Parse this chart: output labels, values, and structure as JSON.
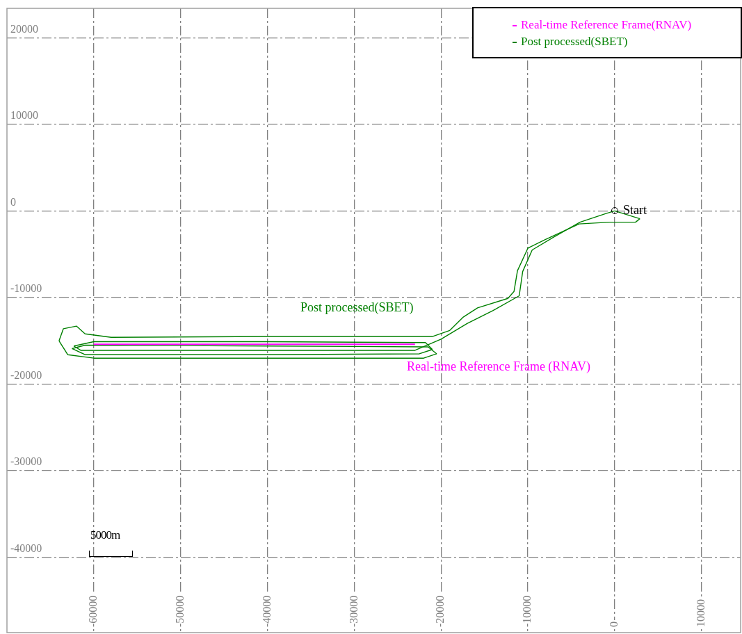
{
  "chart_data": {
    "type": "line",
    "xlim": [
      -70000,
      14500
    ],
    "ylim": [
      -48700,
      23400
    ],
    "xticks": [
      -60000,
      -50000,
      -40000,
      -30000,
      -20000,
      -10000,
      0,
      10000
    ],
    "yticks": [
      -40000,
      -30000,
      -20000,
      -10000,
      0,
      10000,
      20000
    ],
    "grid": true,
    "legend": "top right",
    "line_style": "solid",
    "series": [
      {
        "name": "Real-time Reference Frame(RNAV)",
        "color": "#ff00ff",
        "x": [
          -60000,
          -50000,
          -40000,
          -30000,
          -23000
        ],
        "values": [
          -15400,
          -15400,
          -15400,
          -15400,
          -15400
        ]
      },
      {
        "name": "Post processed(SBET)",
        "color": "#008000",
        "x": [
          0,
          2900
        ],
        "values": [
          0,
          -900
        ]
      },
      {
        "color": "#008000",
        "x": [
          2900,
          2400,
          -600,
          -4100,
          -8000,
          -10000,
          -11200,
          -11600,
          -12300,
          -15800,
          -17500,
          -19000,
          -21000,
          -40000,
          -58000,
          -61000,
          -62000,
          -63500,
          -64000
        ],
        "values": [
          -900,
          -1300,
          -1300,
          -1500,
          -3300,
          -4300,
          -6900,
          -9300,
          -10100,
          -11200,
          -12300,
          -13800,
          -14500,
          -14500,
          -14600,
          -14200,
          -13300,
          -13600,
          -15000
        ]
      },
      {
        "color": "#008000",
        "x": [
          -64000,
          -63000,
          -60000,
          -40000,
          -22000,
          -20500
        ],
        "values": [
          -15000,
          -16600,
          -17000,
          -17000,
          -17000,
          -16500
        ]
      },
      {
        "color": "#008000",
        "x": [
          -20500,
          -21500,
          -40000,
          -61000,
          -62500
        ],
        "values": [
          -16500,
          -15700,
          -15600,
          -15500,
          -15900
        ]
      },
      {
        "color": "#008000",
        "x": [
          -62500,
          -61000,
          -40000,
          -22500,
          -21000
        ],
        "values": [
          -15900,
          -16600,
          -16600,
          -16500,
          -16000
        ]
      },
      {
        "color": "#008000",
        "x": [
          -21000,
          -21800,
          -40000,
          -60000,
          -62300
        ],
        "values": [
          -16000,
          -15200,
          -15100,
          -15100,
          -15600
        ]
      },
      {
        "color": "#008000",
        "x": [
          -62300,
          -61500,
          -40000,
          -23000,
          -20000,
          -17000,
          -14000,
          -11000,
          -10600,
          -9500,
          -7000,
          -4000,
          -1000,
          0
        ],
        "values": [
          -15600,
          -16100,
          -16100,
          -16100,
          -14800,
          -13000,
          -11500,
          -9800,
          -7000,
          -4500,
          -3000,
          -1300,
          -300,
          0
        ]
      }
    ],
    "annotations": [
      "Real-time Reference Frame (RNAV)",
      "Post processed(SBET)",
      {
        "text": "Start",
        "x": 0,
        "y": 0
      },
      "5000m"
    ]
  }
}
